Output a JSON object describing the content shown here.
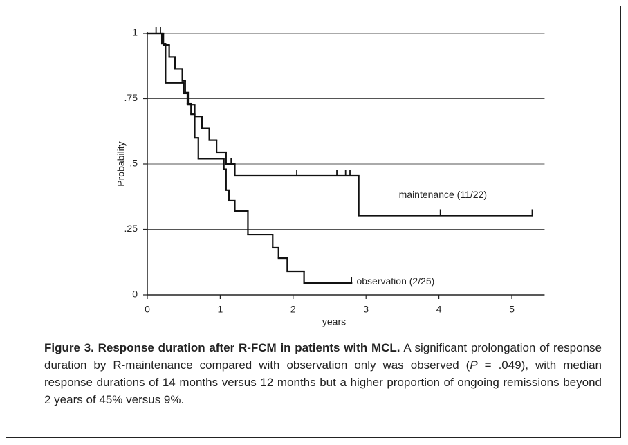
{
  "chart_data": {
    "type": "step",
    "ylabel": "Probability",
    "xlabel": "years",
    "xlim": [
      0,
      5.45
    ],
    "ylim": [
      0,
      1
    ],
    "xticks": [
      0,
      1,
      2,
      3,
      4,
      5
    ],
    "yticks": [
      {
        "value": 0,
        "label": "0"
      },
      {
        "value": 0.25,
        "label": ".25"
      },
      {
        "value": 0.5,
        "label": ".5"
      },
      {
        "value": 0.75,
        "label": ".75"
      },
      {
        "value": 1,
        "label": "1"
      }
    ],
    "grid": true,
    "series": [
      {
        "name": "maintenance (11/22)",
        "color": "#111111",
        "x": [
          0,
          0.22,
          0.3,
          0.38,
          0.48,
          0.52,
          0.56,
          0.65,
          0.75,
          0.85,
          0.95,
          1.08,
          1.2,
          2.9,
          5.28
        ],
        "values": [
          1,
          0.955,
          0.909,
          0.864,
          0.818,
          0.773,
          0.727,
          0.682,
          0.636,
          0.591,
          0.545,
          0.5,
          0.455,
          0.303,
          0.303
        ],
        "censored": [
          1.15,
          2.05,
          2.6,
          2.72,
          2.78,
          4.02,
          5.28
        ]
      },
      {
        "name": "observation (2/25)",
        "color": "#111111",
        "x": [
          0,
          0.2,
          0.25,
          0.5,
          0.55,
          0.6,
          0.65,
          0.7,
          1.05,
          1.08,
          1.12,
          1.2,
          1.38,
          1.72,
          1.8,
          1.92,
          2.15,
          2.8
        ],
        "values": [
          1,
          0.96,
          0.81,
          0.77,
          0.73,
          0.69,
          0.6,
          0.52,
          0.48,
          0.4,
          0.36,
          0.32,
          0.23,
          0.18,
          0.14,
          0.09,
          0.045,
          0.045
        ],
        "censored": [
          0.12,
          0.18,
          2.8
        ]
      }
    ]
  },
  "caption": {
    "title": "Figure 3. Response duration after R-FCM in patients with MCL.",
    "body": [
      "A significant prolongation of response duration by R-maintenance compared with observation only was observed (",
      "P",
      " = .049), with median response durations of 14 months versus 12 months but a higher proportion of ongoing remissions beyond 2 years of 45% versus 9%."
    ]
  }
}
